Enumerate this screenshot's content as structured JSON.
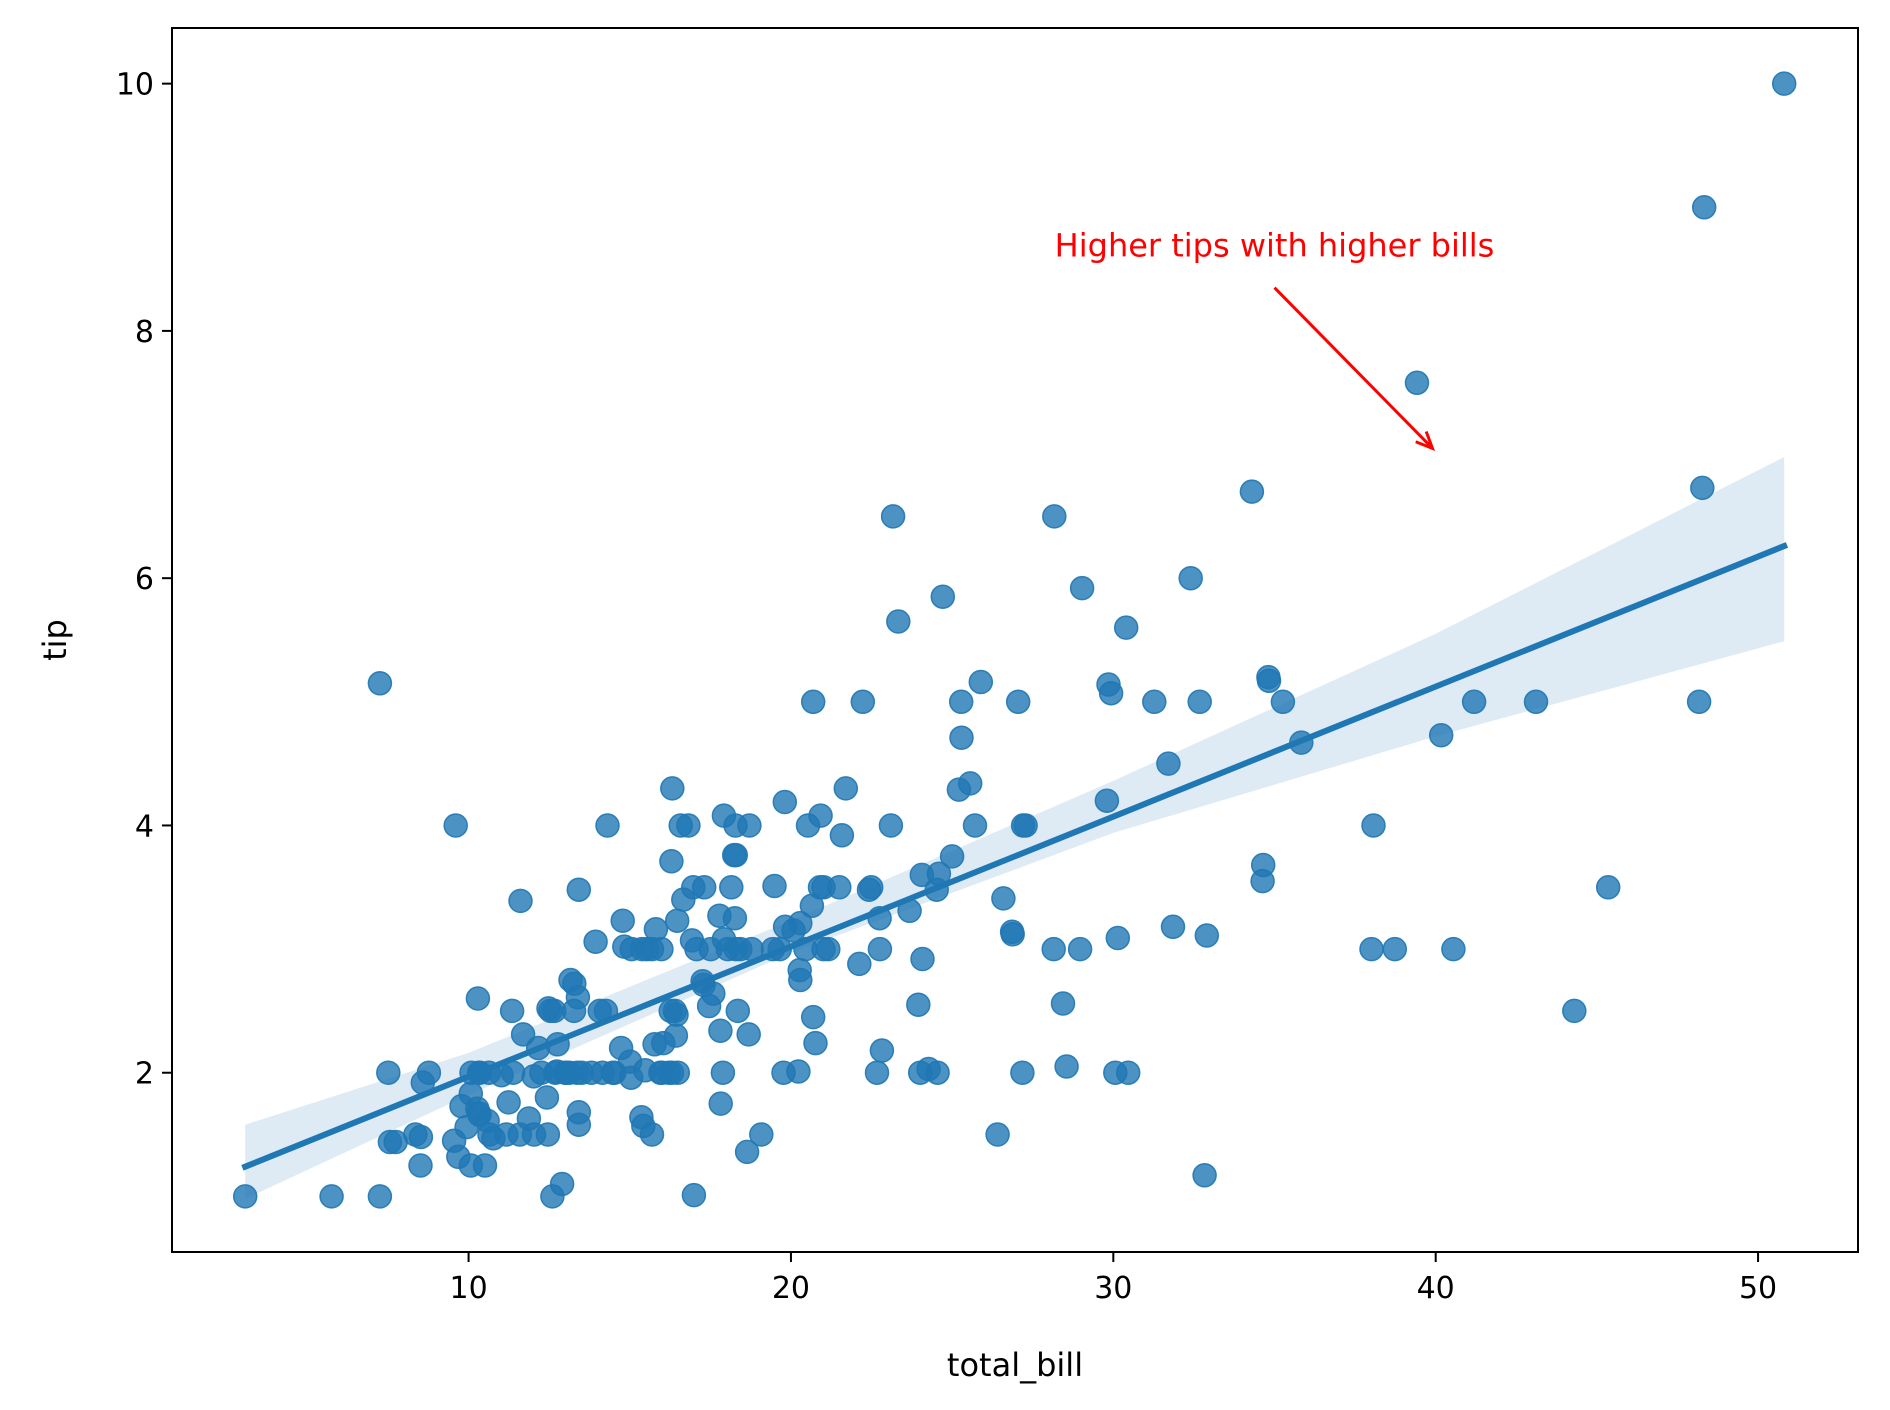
{
  "chart_data": {
    "type": "scatter",
    "title": "",
    "xlabel": "total_bill",
    "ylabel": "tip",
    "xlim": [
      0.8,
      53.1
    ],
    "ylim": [
      0.55,
      10.45
    ],
    "xticks": [
      10,
      20,
      30,
      40,
      50
    ],
    "yticks": [
      2,
      4,
      6,
      8,
      10
    ],
    "grid": false,
    "point_color": "#1f77b4",
    "points": [
      [
        3.07,
        1.0
      ],
      [
        5.75,
        1.0
      ],
      [
        7.25,
        1.0
      ],
      [
        7.25,
        5.15
      ],
      [
        7.51,
        2.0
      ],
      [
        7.56,
        1.44
      ],
      [
        7.74,
        1.44
      ],
      [
        8.35,
        1.5
      ],
      [
        8.51,
        1.25
      ],
      [
        8.52,
        1.48
      ],
      [
        8.58,
        1.92
      ],
      [
        8.77,
        2.0
      ],
      [
        9.55,
        1.45
      ],
      [
        9.6,
        4.0
      ],
      [
        9.68,
        1.32
      ],
      [
        9.78,
        1.73
      ],
      [
        9.94,
        1.56
      ],
      [
        10.07,
        1.25
      ],
      [
        10.07,
        1.83
      ],
      [
        10.09,
        2.0
      ],
      [
        10.27,
        1.71
      ],
      [
        10.29,
        2.6
      ],
      [
        10.33,
        1.67
      ],
      [
        10.33,
        2.0
      ],
      [
        10.34,
        1.66
      ],
      [
        10.34,
        2.0
      ],
      [
        10.51,
        1.25
      ],
      [
        10.59,
        1.61
      ],
      [
        10.63,
        2.0
      ],
      [
        10.65,
        1.5
      ],
      [
        10.77,
        1.47
      ],
      [
        11.02,
        1.98
      ],
      [
        11.17,
        1.5
      ],
      [
        11.24,
        1.76
      ],
      [
        11.35,
        2.5
      ],
      [
        11.38,
        2.0
      ],
      [
        11.59,
        1.5
      ],
      [
        11.61,
        3.39
      ],
      [
        11.69,
        2.31
      ],
      [
        11.87,
        1.63
      ],
      [
        12.02,
        1.97
      ],
      [
        12.03,
        1.5
      ],
      [
        12.16,
        2.2
      ],
      [
        12.26,
        2.0
      ],
      [
        12.43,
        1.8
      ],
      [
        12.46,
        1.5
      ],
      [
        12.48,
        2.52
      ],
      [
        12.54,
        2.5
      ],
      [
        12.6,
        1.0
      ],
      [
        12.66,
        2.5
      ],
      [
        12.69,
        2.0
      ],
      [
        12.74,
        2.01
      ],
      [
        12.76,
        2.23
      ],
      [
        12.9,
        1.1
      ],
      [
        13.0,
        2.0
      ],
      [
        13.03,
        2.0
      ],
      [
        13.13,
        2.0
      ],
      [
        13.16,
        2.75
      ],
      [
        13.27,
        2.5
      ],
      [
        13.28,
        2.72
      ],
      [
        13.37,
        2.0
      ],
      [
        13.39,
        2.61
      ],
      [
        13.42,
        1.68
      ],
      [
        13.42,
        1.58
      ],
      [
        13.42,
        3.48
      ],
      [
        13.51,
        2.0
      ],
      [
        13.81,
        2.0
      ],
      [
        13.94,
        3.06
      ],
      [
        14.07,
        2.5
      ],
      [
        14.15,
        2.0
      ],
      [
        14.26,
        2.5
      ],
      [
        14.31,
        4.0
      ],
      [
        14.48,
        2.0
      ],
      [
        14.52,
        2.0
      ],
      [
        14.73,
        2.2
      ],
      [
        14.78,
        3.23
      ],
      [
        14.83,
        3.02
      ],
      [
        15.01,
        2.09
      ],
      [
        15.04,
        1.96
      ],
      [
        15.06,
        3.0
      ],
      [
        15.36,
        1.64
      ],
      [
        15.38,
        3.0
      ],
      [
        15.42,
        1.57
      ],
      [
        15.48,
        2.02
      ],
      [
        15.53,
        3.0
      ],
      [
        15.69,
        3.0
      ],
      [
        15.69,
        1.5
      ],
      [
        15.77,
        2.23
      ],
      [
        15.81,
        3.16
      ],
      [
        15.95,
        2.0
      ],
      [
        15.98,
        3.0
      ],
      [
        16.0,
        2.0
      ],
      [
        16.04,
        2.24
      ],
      [
        16.21,
        2.0
      ],
      [
        16.27,
        2.5
      ],
      [
        16.29,
        3.71
      ],
      [
        16.31,
        2.0
      ],
      [
        16.32,
        4.3
      ],
      [
        16.4,
        2.5
      ],
      [
        16.43,
        2.3
      ],
      [
        16.45,
        2.47
      ],
      [
        16.47,
        3.23
      ],
      [
        16.49,
        2.0
      ],
      [
        16.58,
        4.0
      ],
      [
        16.66,
        3.4
      ],
      [
        16.82,
        4.0
      ],
      [
        16.93,
        3.07
      ],
      [
        16.97,
        3.5
      ],
      [
        16.99,
        1.01
      ],
      [
        17.07,
        3.0
      ],
      [
        17.26,
        2.74
      ],
      [
        17.29,
        2.71
      ],
      [
        17.31,
        3.5
      ],
      [
        17.46,
        2.54
      ],
      [
        17.51,
        3.0
      ],
      [
        17.59,
        2.64
      ],
      [
        17.78,
        3.27
      ],
      [
        17.81,
        2.34
      ],
      [
        17.82,
        1.75
      ],
      [
        17.89,
        2.0
      ],
      [
        17.92,
        4.08
      ],
      [
        17.92,
        3.08
      ],
      [
        18.04,
        3.0
      ],
      [
        18.15,
        3.5
      ],
      [
        18.24,
        3.76
      ],
      [
        18.26,
        3.25
      ],
      [
        18.28,
        4.0
      ],
      [
        18.29,
        3.0
      ],
      [
        18.29,
        3.76
      ],
      [
        18.35,
        2.5
      ],
      [
        18.43,
        3.0
      ],
      [
        18.64,
        1.36
      ],
      [
        18.69,
        2.31
      ],
      [
        18.71,
        4.0
      ],
      [
        18.78,
        3.0
      ],
      [
        19.08,
        1.5
      ],
      [
        19.44,
        3.0
      ],
      [
        19.49,
        3.51
      ],
      [
        19.65,
        3.0
      ],
      [
        19.77,
        2.0
      ],
      [
        19.81,
        4.19
      ],
      [
        19.82,
        3.18
      ],
      [
        20.08,
        3.15
      ],
      [
        20.23,
        2.01
      ],
      [
        20.27,
        2.83
      ],
      [
        20.29,
        3.21
      ],
      [
        20.29,
        2.75
      ],
      [
        20.45,
        3.0
      ],
      [
        20.53,
        4.0
      ],
      [
        20.65,
        3.35
      ],
      [
        20.69,
        5.0
      ],
      [
        20.69,
        2.45
      ],
      [
        20.76,
        2.24
      ],
      [
        20.9,
        3.5
      ],
      [
        20.92,
        4.08
      ],
      [
        21.01,
        3.5
      ],
      [
        21.01,
        3.0
      ],
      [
        21.16,
        3.0
      ],
      [
        21.5,
        3.5
      ],
      [
        21.58,
        3.92
      ],
      [
        21.7,
        4.3
      ],
      [
        22.12,
        2.88
      ],
      [
        22.23,
        5.0
      ],
      [
        22.42,
        3.48
      ],
      [
        22.49,
        3.5
      ],
      [
        22.67,
        2.0
      ],
      [
        22.75,
        3.25
      ],
      [
        22.76,
        3.0
      ],
      [
        22.82,
        2.18
      ],
      [
        23.1,
        4.0
      ],
      [
        23.17,
        6.5
      ],
      [
        23.33,
        5.65
      ],
      [
        23.68,
        3.31
      ],
      [
        23.95,
        2.55
      ],
      [
        24.01,
        2.0
      ],
      [
        24.06,
        3.6
      ],
      [
        24.08,
        2.92
      ],
      [
        24.27,
        2.03
      ],
      [
        24.52,
        3.48
      ],
      [
        24.55,
        2.0
      ],
      [
        24.59,
        3.61
      ],
      [
        24.71,
        5.85
      ],
      [
        25.0,
        3.75
      ],
      [
        25.21,
        4.29
      ],
      [
        25.28,
        5.0
      ],
      [
        25.29,
        4.71
      ],
      [
        25.56,
        4.34
      ],
      [
        25.71,
        4.0
      ],
      [
        25.89,
        5.16
      ],
      [
        26.41,
        1.5
      ],
      [
        26.59,
        3.41
      ],
      [
        26.86,
        3.14
      ],
      [
        26.88,
        3.12
      ],
      [
        27.05,
        5.0
      ],
      [
        27.18,
        2.0
      ],
      [
        27.2,
        4.0
      ],
      [
        27.28,
        4.0
      ],
      [
        28.15,
        3.0
      ],
      [
        28.17,
        6.5
      ],
      [
        28.44,
        2.56
      ],
      [
        28.55,
        2.05
      ],
      [
        28.97,
        3.0
      ],
      [
        29.03,
        5.92
      ],
      [
        29.8,
        4.2
      ],
      [
        29.85,
        5.14
      ],
      [
        29.93,
        5.07
      ],
      [
        30.06,
        2.0
      ],
      [
        30.14,
        3.09
      ],
      [
        30.4,
        5.6
      ],
      [
        30.46,
        2.0
      ],
      [
        31.27,
        5.0
      ],
      [
        31.71,
        4.5
      ],
      [
        31.85,
        3.18
      ],
      [
        32.4,
        6.0
      ],
      [
        32.68,
        5.0
      ],
      [
        32.83,
        1.17
      ],
      [
        32.9,
        3.11
      ],
      [
        34.3,
        6.7
      ],
      [
        34.63,
        3.55
      ],
      [
        34.65,
        3.68
      ],
      [
        34.81,
        5.2
      ],
      [
        34.83,
        5.17
      ],
      [
        35.26,
        5.0
      ],
      [
        35.83,
        4.67
      ],
      [
        38.01,
        3.0
      ],
      [
        38.07,
        4.0
      ],
      [
        38.73,
        3.0
      ],
      [
        39.42,
        7.58
      ],
      [
        40.17,
        4.73
      ],
      [
        40.55,
        3.0
      ],
      [
        41.19,
        5.0
      ],
      [
        43.11,
        5.0
      ],
      [
        44.3,
        2.5
      ],
      [
        45.35,
        3.5
      ],
      [
        48.17,
        5.0
      ],
      [
        48.27,
        6.73
      ],
      [
        48.33,
        9.0
      ],
      [
        50.81,
        10.0
      ]
    ],
    "regression": {
      "color": "#1f77b4",
      "line": [
        [
          3.07,
          1.24
        ],
        [
          50.81,
          6.26
        ]
      ],
      "ci_band": {
        "x": [
          3.07,
          10,
          20,
          30,
          40,
          50.81
        ],
        "lower": [
          0.98,
          1.82,
          2.97,
          3.94,
          4.72,
          5.49
        ],
        "upper": [
          1.58,
          2.16,
          3.23,
          4.36,
          5.55,
          6.98
        ]
      }
    },
    "annotation": {
      "text": "Higher tips with higher bills",
      "color": "#ff0000",
      "text_pos": [
        35,
        8.6
      ],
      "arrow_from": [
        35,
        8.35
      ],
      "arrow_to": [
        39.9,
        7.05
      ]
    }
  }
}
